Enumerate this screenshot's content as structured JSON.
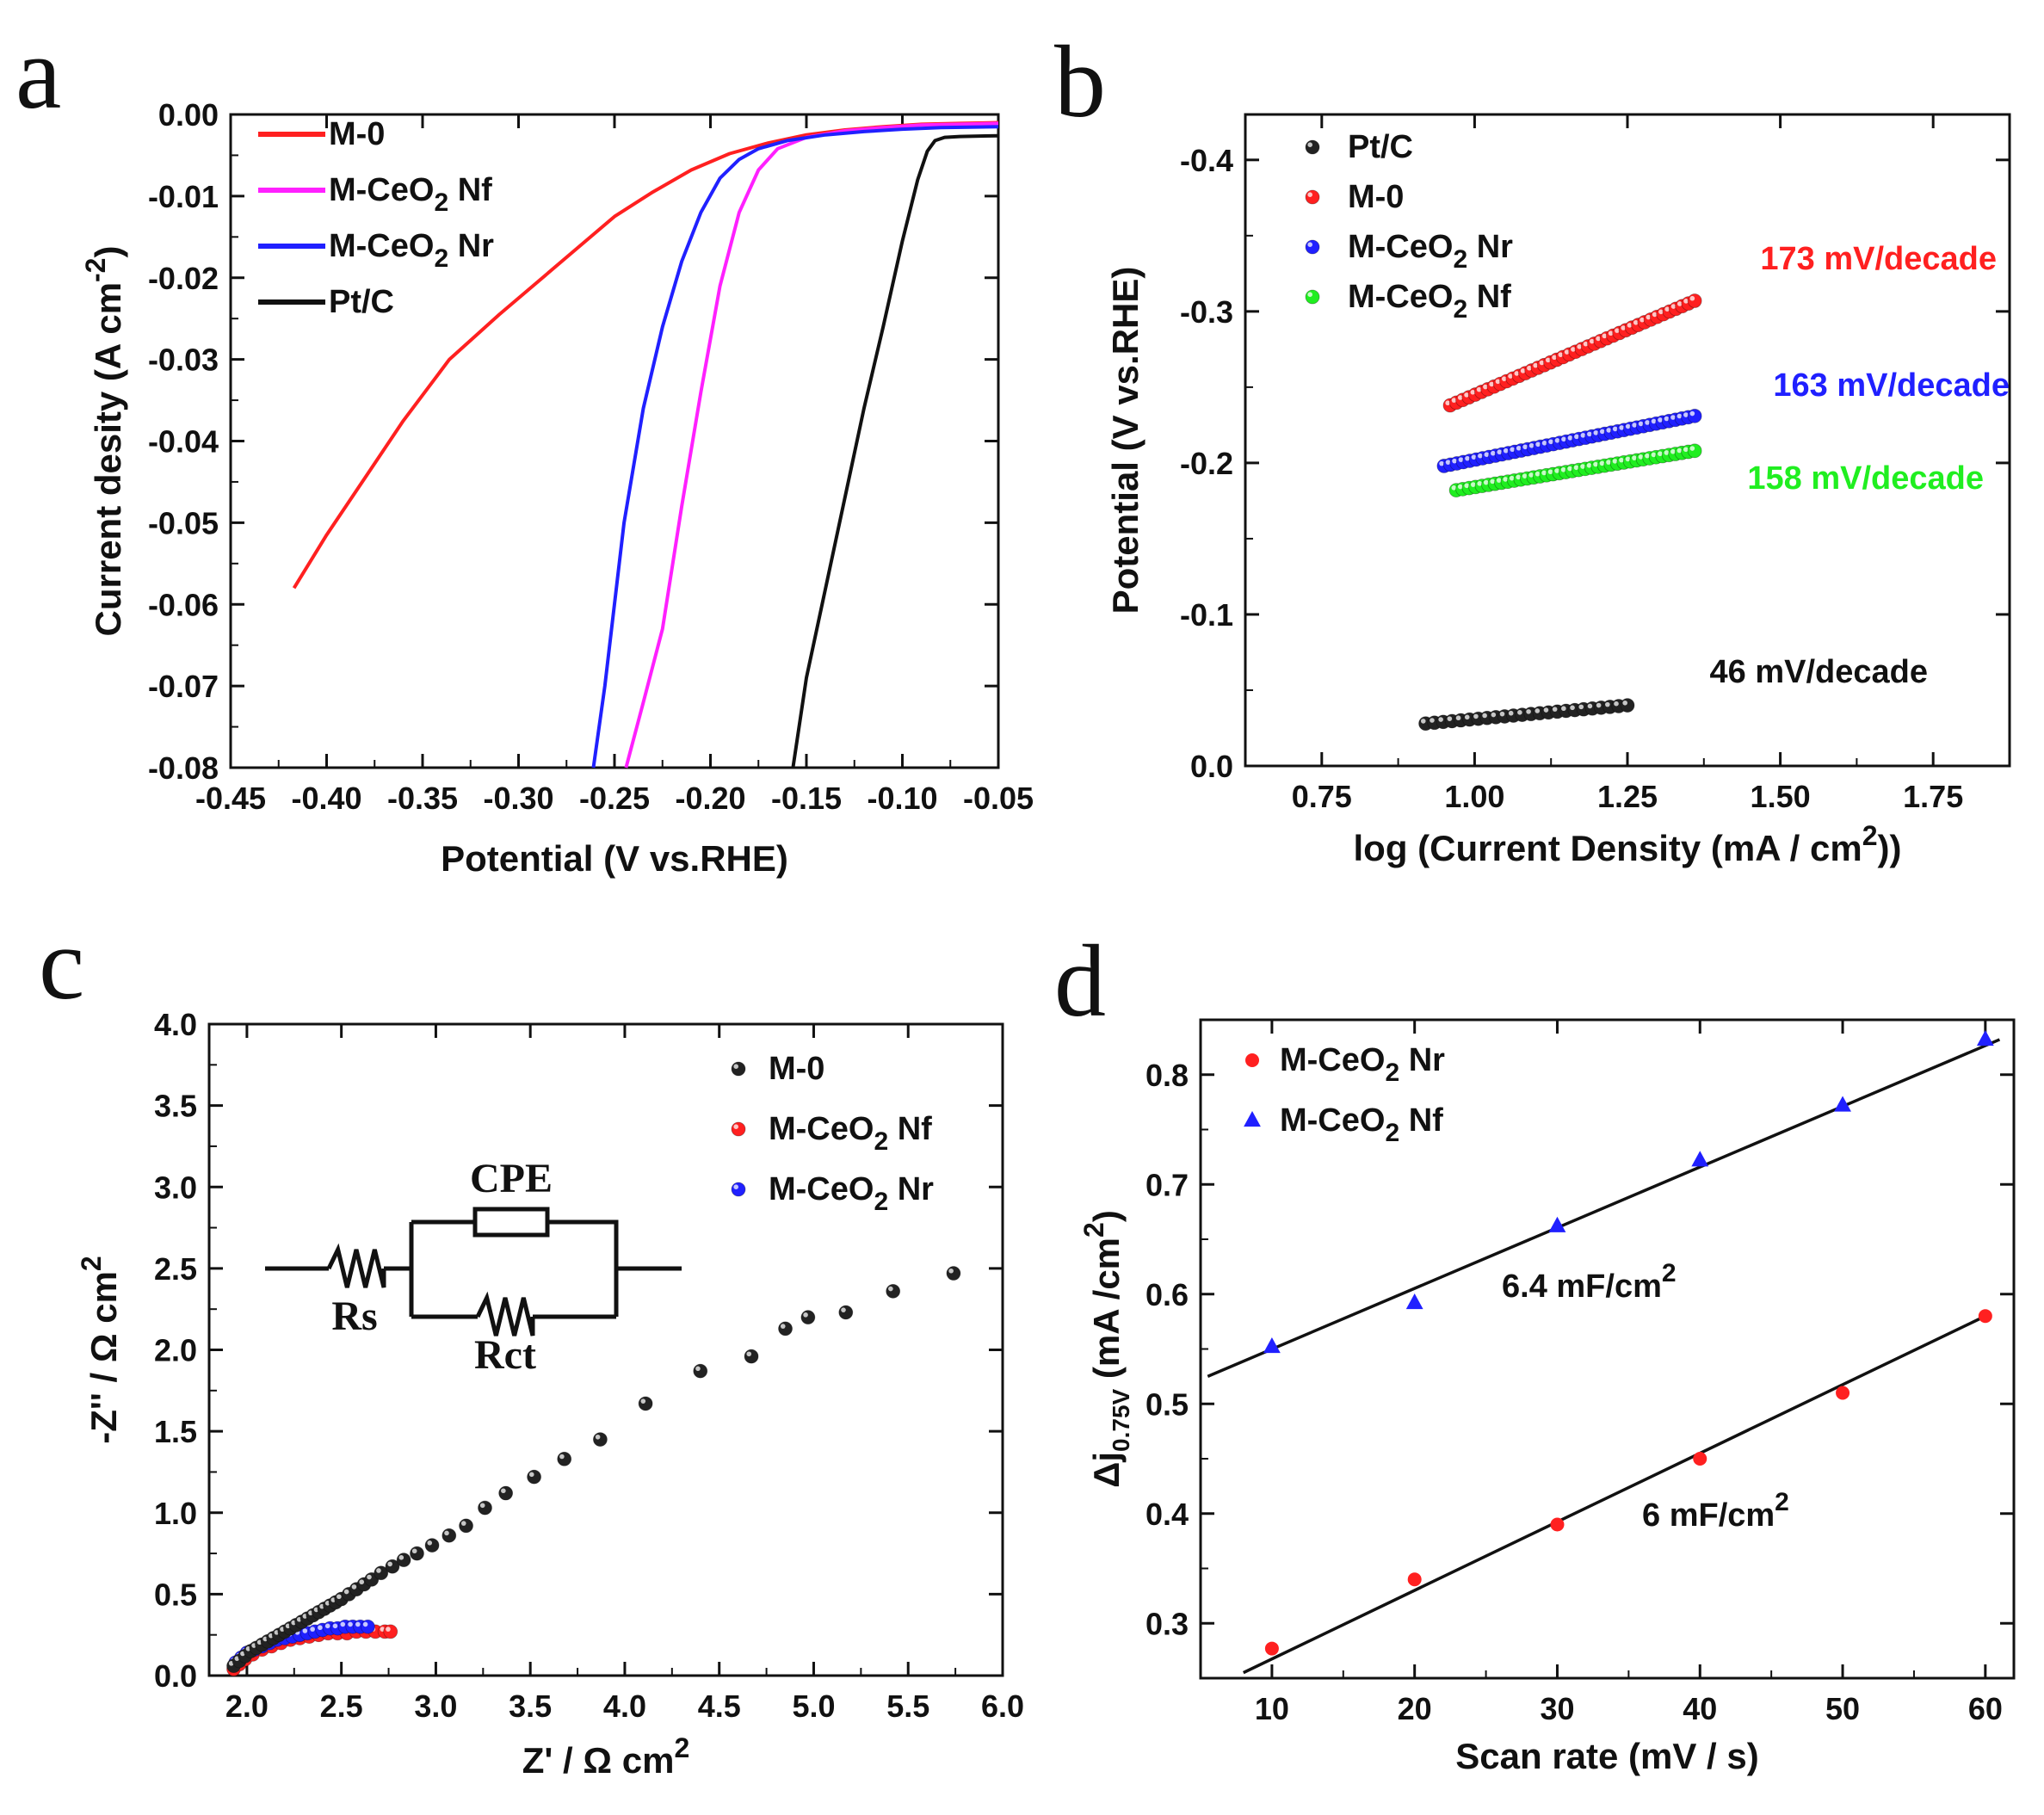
{
  "chart_data": [
    {
      "panel": "a",
      "type": "line",
      "xlabel": "Potential (V vs.RHE)",
      "ylabel": "Current desity (A cm",
      "ylabel_superscript": "-2",
      "ylabel_close": ")",
      "xlim": [
        -0.45,
        -0.05
      ],
      "ylim": [
        -0.08,
        0.0
      ],
      "x_ticks": [
        -0.45,
        -0.4,
        -0.35,
        -0.3,
        -0.25,
        -0.2,
        -0.15,
        -0.1,
        -0.05
      ],
      "y_ticks": [
        0.0,
        -0.01,
        -0.02,
        -0.03,
        -0.04,
        -0.05,
        -0.06,
        -0.07,
        -0.08
      ],
      "x_tick_labels": [
        "-0.45",
        "-0.40",
        "-0.35",
        "-0.30",
        "-0.25",
        "-0.20",
        "-0.15",
        "-0.10",
        "-0.05"
      ],
      "y_tick_labels": [
        "0.00",
        "-0.01",
        "-0.02",
        "-0.03",
        "-0.04",
        "-0.05",
        "-0.06",
        "-0.07",
        "-0.08"
      ],
      "legend": [
        {
          "label": "M-0",
          "sub": "",
          "after": "",
          "color": "#ff2020"
        },
        {
          "label": "M-CeO",
          "sub": "2",
          "after": " Nf",
          "color": "#ff20ff"
        },
        {
          "label": "M-CeO",
          "sub": "2",
          "after": " Nr",
          "color": "#2020ff"
        },
        {
          "label": "Pt/C",
          "sub": "",
          "after": "",
          "color": "#111111"
        }
      ],
      "series": [
        {
          "name": "M-0",
          "color": "#ff2020",
          "x": [
            -0.417,
            -0.4,
            -0.38,
            -0.36,
            -0.336,
            -0.31,
            -0.29,
            -0.27,
            -0.25,
            -0.23,
            -0.21,
            -0.19,
            -0.17,
            -0.15,
            -0.13,
            -0.11,
            -0.09,
            -0.07,
            -0.05
          ],
          "y": [
            -0.058,
            -0.0515,
            -0.0445,
            -0.0375,
            -0.03,
            -0.0245,
            -0.0205,
            -0.0165,
            -0.0125,
            -0.0095,
            -0.0068,
            -0.0048,
            -0.0035,
            -0.0025,
            -0.0019,
            -0.0015,
            -0.0012,
            -0.0011,
            -0.001
          ]
        },
        {
          "name": "M-CeO2 Nf",
          "color": "#ff20ff",
          "x": [
            -0.244,
            -0.235,
            -0.225,
            -0.215,
            -0.205,
            -0.195,
            -0.185,
            -0.175,
            -0.165,
            -0.15,
            -0.13,
            -0.11,
            -0.09,
            -0.07,
            -0.05
          ],
          "y": [
            -0.08,
            -0.072,
            -0.063,
            -0.048,
            -0.034,
            -0.021,
            -0.012,
            -0.0068,
            -0.0042,
            -0.0028,
            -0.002,
            -0.0016,
            -0.0013,
            -0.0012,
            -0.0011
          ]
        },
        {
          "name": "M-CeO2 Nr",
          "color": "#2020ff",
          "x": [
            -0.261,
            -0.255,
            -0.245,
            -0.235,
            -0.225,
            -0.215,
            -0.205,
            -0.195,
            -0.185,
            -0.175,
            -0.16,
            -0.14,
            -0.12,
            -0.1,
            -0.08,
            -0.05
          ],
          "y": [
            -0.08,
            -0.07,
            -0.05,
            -0.036,
            -0.026,
            -0.018,
            -0.012,
            -0.0078,
            -0.0055,
            -0.0042,
            -0.0032,
            -0.0025,
            -0.0021,
            -0.0018,
            -0.0016,
            -0.0015
          ]
        },
        {
          "name": "Pt/C",
          "color": "#111111",
          "x": [
            -0.157,
            -0.15,
            -0.14,
            -0.13,
            -0.12,
            -0.11,
            -0.1,
            -0.092,
            -0.087,
            -0.083,
            -0.078,
            -0.07,
            -0.05
          ],
          "y": [
            -0.08,
            -0.069,
            -0.058,
            -0.047,
            -0.036,
            -0.026,
            -0.0155,
            -0.008,
            -0.0045,
            -0.0032,
            -0.0028,
            -0.0027,
            -0.0026
          ]
        }
      ]
    },
    {
      "panel": "b",
      "type": "scatter",
      "xlabel": "log (Current Density (mA / cm",
      "xlabel_superscript": "2",
      "xlabel_close": "))",
      "ylabel": "Potential (V vs.RHE)",
      "xlim": [
        0.625,
        1.875
      ],
      "ylim": [
        0.0,
        -0.43
      ],
      "x_ticks": [
        0.75,
        1.0,
        1.25,
        1.5,
        1.75
      ],
      "y_ticks": [
        0.0,
        -0.1,
        -0.2,
        -0.3,
        -0.4
      ],
      "x_tick_labels": [
        "0.75",
        "1.00",
        "1.25",
        "1.50",
        "1.75"
      ],
      "y_tick_labels": [
        "0.0",
        "-0.1",
        "-0.2",
        "-0.3",
        "-0.4"
      ],
      "legend": [
        {
          "label": "Pt/C",
          "sub": "",
          "after": "",
          "color": "#222222"
        },
        {
          "label": "M-0",
          "sub": "",
          "after": "",
          "color": "#ff2020"
        },
        {
          "label": "M-CeO",
          "sub": "2",
          "after": " Nr",
          "color": "#2020ff"
        },
        {
          "label": "M-CeO",
          "sub": "2",
          "after": " Nf",
          "color": "#20ee20"
        }
      ],
      "series": [
        {
          "name": "Pt/C",
          "color": "#222222",
          "x_start": 0.92,
          "x_end": 1.25,
          "y_start": -0.028,
          "y_end": -0.04,
          "points": 24
        },
        {
          "name": "M-0",
          "color": "#ff2020",
          "x_start": 0.96,
          "x_end": 1.36,
          "y_start": -0.238,
          "y_end": -0.307,
          "points": 40
        },
        {
          "name": "M-CeO2 Nr",
          "color": "#2020ff",
          "x_start": 0.95,
          "x_end": 1.36,
          "y_start": -0.198,
          "y_end": -0.231,
          "points": 40
        },
        {
          "name": "M-CeO2 Nf",
          "color": "#20ee20",
          "x_start": 0.97,
          "x_end": 1.36,
          "y_start": -0.182,
          "y_end": -0.208,
          "points": 38
        }
      ],
      "annotations": [
        {
          "text": "173 mV/decade",
          "color": "#ff2020"
        },
        {
          "text": "163 mV/decade",
          "color": "#2020ff"
        },
        {
          "text": "158 mV/decade",
          "color": "#20ee20"
        },
        {
          "text": "46 mV/decade",
          "color": "#111111"
        }
      ]
    },
    {
      "panel": "c",
      "type": "scatter",
      "xlabel": "Z' /  Ω cm",
      "xlabel_superscript": "2",
      "ylabel": "-Z'' / Ω cm",
      "ylabel_superscript": "2",
      "xlim": [
        1.8,
        6.0
      ],
      "ylim": [
        0.0,
        4.0
      ],
      "x_ticks": [
        2.0,
        2.5,
        3.0,
        3.5,
        4.0,
        4.5,
        5.0,
        5.5,
        6.0
      ],
      "y_ticks": [
        0.0,
        0.5,
        1.0,
        1.5,
        2.0,
        2.5,
        3.0,
        3.5,
        4.0
      ],
      "x_tick_labels": [
        "2.0",
        "2.5",
        "3.0",
        "3.5",
        "4.0",
        "4.5",
        "5.0",
        "5.5",
        "6.0"
      ],
      "y_tick_labels": [
        "0.0",
        "0.5",
        "1.0",
        "1.5",
        "2.0",
        "2.5",
        "3.0",
        "3.5",
        "4.0"
      ],
      "legend": [
        {
          "label": "M-0",
          "sub": "",
          "after": "",
          "color": "#222222"
        },
        {
          "label": "M-CeO",
          "sub": "2",
          "after": " Nf",
          "color": "#ff2020"
        },
        {
          "label": "M-CeO",
          "sub": "2",
          "after": "  Nr",
          "color": "#2020ff"
        }
      ],
      "series": [
        {
          "name": "M-0",
          "color": "#222222",
          "x": [
            1.93,
            1.96,
            1.99,
            2.02,
            2.05,
            2.08,
            2.11,
            2.14,
            2.17,
            2.2,
            2.23,
            2.26,
            2.29,
            2.32,
            2.35,
            2.38,
            2.41,
            2.44,
            2.47,
            2.5,
            2.54,
            2.58,
            2.62,
            2.66,
            2.71,
            2.77,
            2.83,
            2.9,
            2.98,
            3.07,
            3.16,
            3.26,
            3.37,
            3.52,
            3.68,
            3.87,
            4.11,
            4.4,
            4.67,
            4.85,
            4.97,
            5.17,
            5.42,
            5.74
          ],
          "y": [
            0.06,
            0.09,
            0.12,
            0.15,
            0.17,
            0.19,
            0.21,
            0.23,
            0.25,
            0.27,
            0.29,
            0.31,
            0.33,
            0.35,
            0.37,
            0.39,
            0.41,
            0.43,
            0.45,
            0.47,
            0.5,
            0.53,
            0.56,
            0.59,
            0.63,
            0.67,
            0.71,
            0.75,
            0.8,
            0.86,
            0.92,
            1.03,
            1.12,
            1.22,
            1.33,
            1.45,
            1.67,
            1.87,
            1.96,
            2.13,
            2.2,
            2.23,
            2.36,
            2.47
          ]
        },
        {
          "name": "M-CeO2 Nf",
          "color": "#ff2020",
          "x": [
            1.93,
            1.96,
            1.99,
            2.03,
            2.08,
            2.13,
            2.18,
            2.23,
            2.28,
            2.33,
            2.38,
            2.43,
            2.48,
            2.53,
            2.58,
            2.63,
            2.68,
            2.73,
            2.76
          ],
          "y": [
            0.04,
            0.07,
            0.1,
            0.13,
            0.16,
            0.18,
            0.2,
            0.22,
            0.23,
            0.24,
            0.25,
            0.26,
            0.26,
            0.26,
            0.27,
            0.27,
            0.27,
            0.27,
            0.27
          ]
        },
        {
          "name": "M-CeO2 Nr",
          "color": "#2020ff",
          "x": [
            1.94,
            1.97,
            2.0,
            2.04,
            2.08,
            2.12,
            2.16,
            2.2,
            2.24,
            2.28,
            2.32,
            2.36,
            2.4,
            2.44,
            2.48,
            2.52,
            2.56,
            2.6,
            2.64
          ],
          "y": [
            0.08,
            0.11,
            0.14,
            0.16,
            0.18,
            0.2,
            0.22,
            0.23,
            0.24,
            0.25,
            0.26,
            0.27,
            0.28,
            0.29,
            0.29,
            0.3,
            0.3,
            0.3,
            0.3
          ]
        }
      ],
      "inset_circuit": {
        "labels": [
          "CPE",
          "Rs",
          "Rct"
        ]
      }
    },
    {
      "panel": "d",
      "type": "scatter",
      "xlabel": "Scan rate (mV / s)",
      "ylabel_prefix": "Δj",
      "ylabel_subscript": "0.75V",
      "ylabel": " (mA /cm",
      "ylabel_superscript": "2",
      "ylabel_close": ")",
      "xlim": [
        5,
        62
      ],
      "ylim": [
        0.25,
        0.85
      ],
      "x_ticks": [
        10,
        20,
        30,
        40,
        50,
        60
      ],
      "y_ticks": [
        0.3,
        0.4,
        0.5,
        0.6,
        0.7,
        0.8
      ],
      "x_tick_labels": [
        "10",
        "20",
        "30",
        "40",
        "50",
        "60"
      ],
      "y_tick_labels": [
        "0.3",
        "0.4",
        "0.5",
        "0.6",
        "0.7",
        "0.8"
      ],
      "legend": [
        {
          "label": "M-CeO",
          "sub": "2",
          "after": " Nr",
          "color": "#ff2020",
          "marker": "circle"
        },
        {
          "label": "M-CeO",
          "sub": "2",
          "after": " Nf",
          "color": "#2020ff",
          "marker": "triangle"
        }
      ],
      "series": [
        {
          "name": "M-CeO2 Nr",
          "color": "#ff2020",
          "marker": "circle",
          "x": [
            10,
            20,
            30,
            40,
            50,
            60
          ],
          "y": [
            0.277,
            0.34,
            0.39,
            0.45,
            0.51,
            0.58
          ],
          "fit": {
            "x": [
              8,
              60
            ],
            "y": [
              0.255,
              0.58
            ]
          }
        },
        {
          "name": "M-CeO2 Nf",
          "color": "#2020ff",
          "marker": "triangle",
          "x": [
            10,
            20,
            30,
            40,
            50,
            60
          ],
          "y": [
            0.552,
            0.592,
            0.662,
            0.722,
            0.772,
            0.832
          ],
          "fit": {
            "x": [
              5.5,
              61
            ],
            "y": [
              0.525,
              0.832
            ]
          }
        }
      ],
      "annotations": [
        {
          "text": "6.4 mF/cm",
          "sup": "2"
        },
        {
          "text": "6 mF/cm",
          "sup": "2"
        }
      ]
    }
  ],
  "panel_labels": [
    "a",
    "b",
    "c",
    "d"
  ]
}
